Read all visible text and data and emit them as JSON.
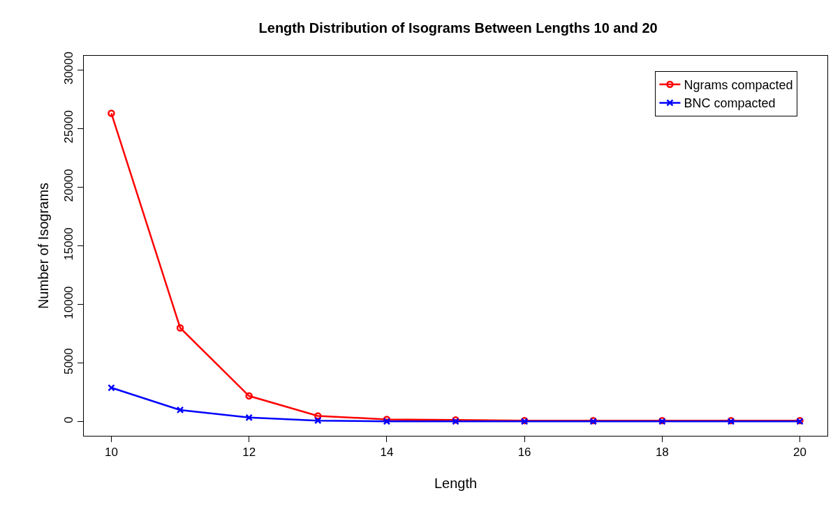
{
  "chart_data": {
    "type": "line",
    "title": "Length Distribution of Isograms Between Lengths 10 and 20",
    "xlabel": "Length",
    "ylabel": "Number of Isograms",
    "x": [
      10,
      11,
      12,
      13,
      14,
      15,
      16,
      17,
      18,
      19,
      20
    ],
    "series": [
      {
        "name": "Ngrams compacted",
        "color": "#ff0000",
        "marker": "circle",
        "values": [
          26300,
          8000,
          2200,
          500,
          200,
          150,
          100,
          100,
          100,
          100,
          100
        ]
      },
      {
        "name": "BNC compacted",
        "color": "#0000ff",
        "marker": "cross",
        "values": [
          2900,
          1000,
          360,
          100,
          30,
          30,
          30,
          30,
          30,
          30,
          30
        ]
      }
    ],
    "xlim": [
      9.6,
      20.4
    ],
    "xticks": [
      10,
      12,
      14,
      16,
      18,
      20
    ],
    "ylim": [
      -1200,
      31200
    ],
    "yticks": [
      0,
      5000,
      10000,
      15000,
      20000,
      25000,
      30000
    ],
    "legend": "top right",
    "line_style": "solid"
  }
}
